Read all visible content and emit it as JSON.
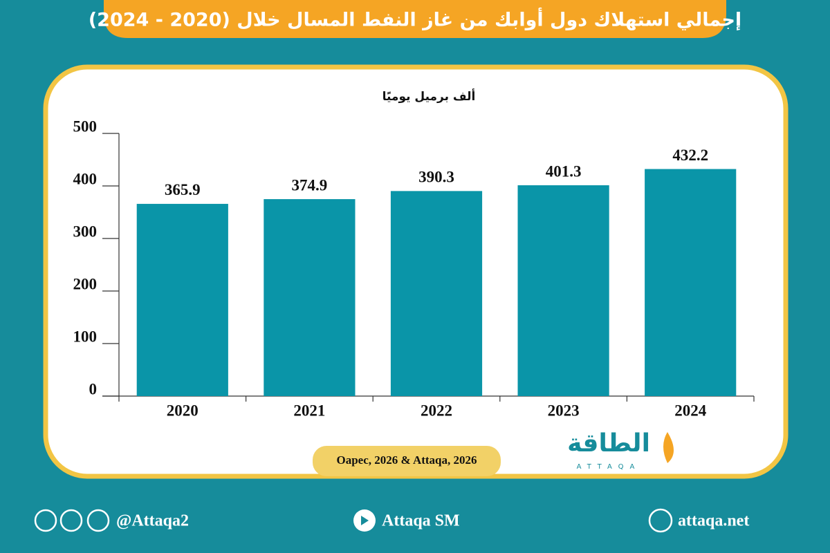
{
  "header": {
    "title": "إجمالي استهلاك دول أوابك من غاز النفط المسال خلال (2020 - 2024)"
  },
  "chart_data": {
    "type": "bar",
    "subtitle": "ألف برميل يوميًا",
    "categories": [
      "2020",
      "2021",
      "2022",
      "2023",
      "2024"
    ],
    "values": [
      365.9,
      374.9,
      390.3,
      401.3,
      432.2
    ],
    "color": "#0a95a8",
    "ylim": [
      0,
      500
    ],
    "yticks": [
      0,
      100,
      200,
      300,
      400,
      500
    ],
    "grid": false,
    "source": "Oapec, 2026 & Attaqa, 2026"
  },
  "logo": {
    "arabic": "الطاقة",
    "latin": "ATTAQA"
  },
  "footer": {
    "social": "@Attaqa2",
    "youtube": "Attaqa SM",
    "website": "attaqa.net"
  }
}
